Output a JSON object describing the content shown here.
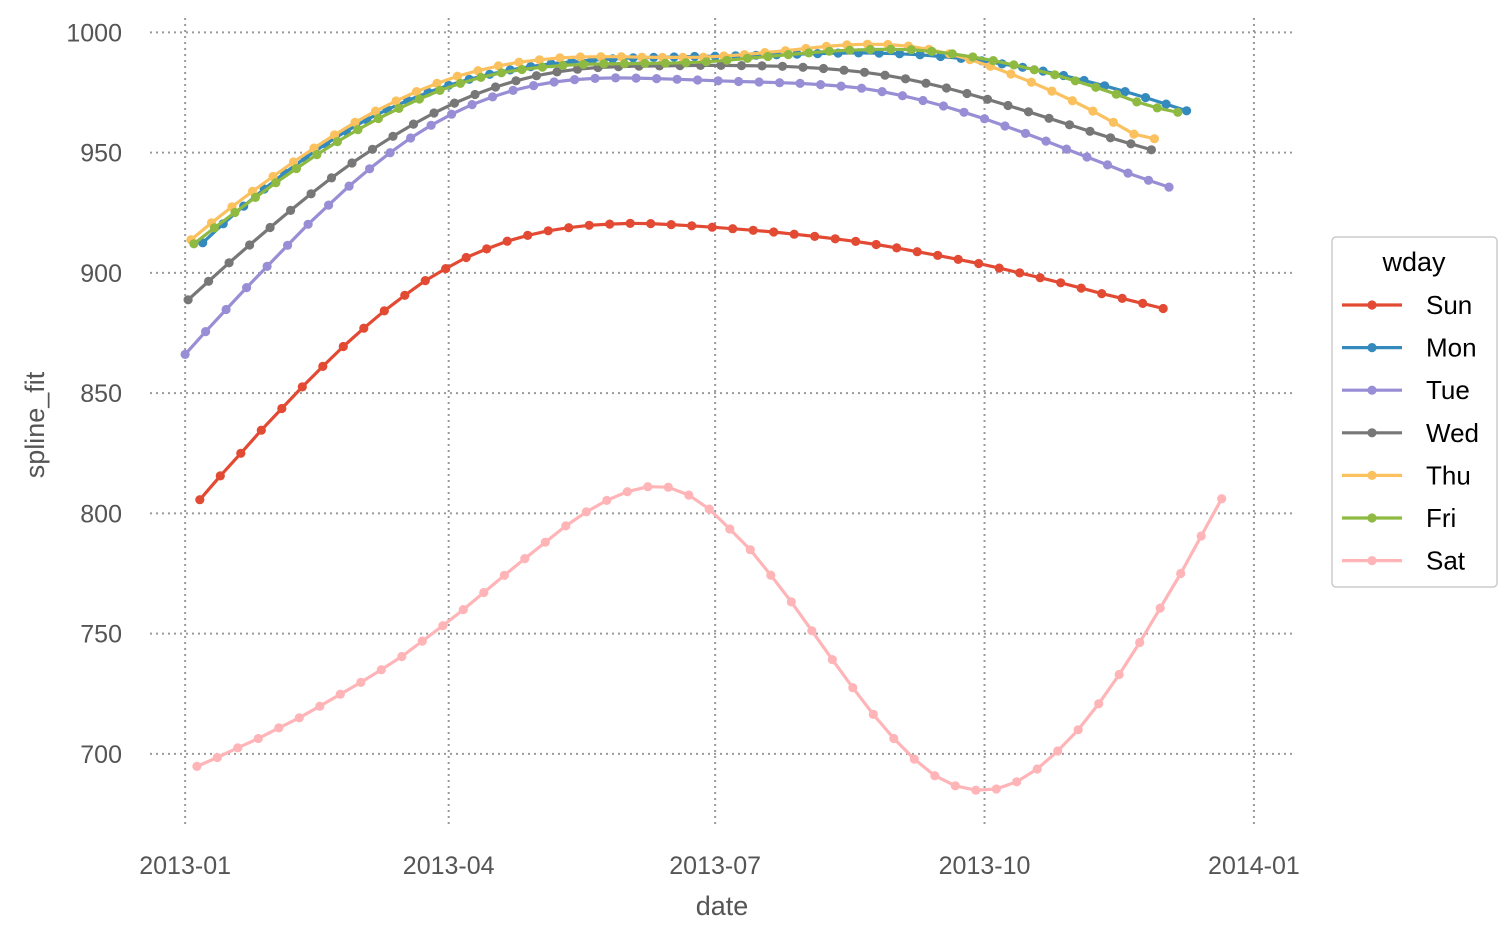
{
  "chart_data": {
    "type": "line",
    "title": "",
    "xlabel": "date",
    "ylabel": "spline_fit",
    "x_ticks": [
      "2013-01",
      "2013-04",
      "2013-07",
      "2013-10",
      "2014-01"
    ],
    "y_ticks": [
      700,
      750,
      800,
      850,
      900,
      950,
      1000
    ],
    "xlim": [
      "2012-12-20",
      "2014-01-14"
    ],
    "ylim": [
      670,
      1006
    ],
    "grid": true,
    "legend": {
      "title": "wday",
      "position": "right"
    },
    "series": [
      {
        "name": "Sun",
        "color": "#E24A33",
        "x_start": "2013-01-06",
        "step_days": 7,
        "values": [
          805.7,
          815.6,
          825.0,
          834.6,
          843.6,
          852.6,
          861.1,
          869.4,
          877.0,
          884.2,
          890.7,
          896.8,
          901.8,
          906.4,
          910.0,
          913.2,
          915.6,
          917.5,
          918.8,
          919.8,
          920.3,
          920.6,
          920.5,
          920.1,
          919.6,
          919.0,
          918.4,
          917.7,
          917.0,
          916.1,
          915.2,
          914.2,
          913.1,
          911.8,
          910.4,
          908.8,
          907.3,
          905.6,
          903.9,
          902.0,
          900.0,
          898.0,
          895.9,
          893.7,
          891.4,
          889.4,
          887.3,
          885.2
        ]
      },
      {
        "name": "Mon",
        "color": "#348ABD",
        "x_start": "2013-01-07",
        "step_days": 7,
        "values": [
          912.5,
          920.4,
          927.8,
          934.9,
          941.6,
          947.8,
          953.6,
          958.9,
          963.7,
          967.9,
          971.7,
          975.1,
          978.0,
          980.5,
          982.6,
          984.4,
          985.8,
          987.0,
          987.8,
          988.5,
          989.0,
          989.4,
          989.6,
          989.8,
          990.0,
          990.1,
          990.3,
          990.5,
          990.7,
          991.0,
          991.2,
          991.4,
          991.5,
          991.4,
          991.1,
          990.7,
          990.0,
          989.2,
          988.2,
          986.9,
          985.5,
          983.9,
          982.1,
          980.0,
          977.8,
          975.4,
          972.9,
          970.2,
          967.4
        ]
      },
      {
        "name": "Tue",
        "color": "#988ED5",
        "x_start": "2013-01-01",
        "step_days": 7,
        "values": [
          866.1,
          875.6,
          884.8,
          893.9,
          902.7,
          911.5,
          920.2,
          928.2,
          936.1,
          943.3,
          950.0,
          956.1,
          961.4,
          966.0,
          970.0,
          973.2,
          975.9,
          977.9,
          979.4,
          980.4,
          980.9,
          981.1,
          981.0,
          980.8,
          980.5,
          980.2,
          979.9,
          979.6,
          979.4,
          979.1,
          978.8,
          978.3,
          977.7,
          976.8,
          975.4,
          973.7,
          971.7,
          969.4,
          966.8,
          964.1,
          961.1,
          958.0,
          954.8,
          951.5,
          948.2,
          944.9,
          941.5,
          938.5,
          935.7
        ]
      },
      {
        "name": "Wed",
        "color": "#777777",
        "x_start": "2013-01-02",
        "step_days": 7,
        "values": [
          888.8,
          896.5,
          904.2,
          911.6,
          918.9,
          926.0,
          932.9,
          939.5,
          945.7,
          951.4,
          956.8,
          961.9,
          966.5,
          970.6,
          974.2,
          977.3,
          979.9,
          982.0,
          983.6,
          984.7,
          985.4,
          985.8,
          986.0,
          986.1,
          986.2,
          986.3,
          986.3,
          986.2,
          986.1,
          985.9,
          985.5,
          985.0,
          984.3,
          983.4,
          982.2,
          980.7,
          978.9,
          976.9,
          974.6,
          972.2,
          969.6,
          967.0,
          964.3,
          961.6,
          958.9,
          956.2,
          953.7,
          951.2
        ]
      },
      {
        "name": "Thu",
        "color": "#FBC15E",
        "x_start": "2013-01-03",
        "step_days": 7,
        "values": [
          913.8,
          920.8,
          927.5,
          933.9,
          940.1,
          946.1,
          951.9,
          957.4,
          962.6,
          967.3,
          971.5,
          975.4,
          978.8,
          981.8,
          984.1,
          986.1,
          987.6,
          988.6,
          989.4,
          989.8,
          989.9,
          989.9,
          989.7,
          989.6,
          989.6,
          989.7,
          990.2,
          990.8,
          991.6,
          992.4,
          993.3,
          994.2,
          994.8,
          995.1,
          995.0,
          994.3,
          993.0,
          991.1,
          988.7,
          985.9,
          982.7,
          979.3,
          975.6,
          971.6,
          967.3,
          962.6,
          957.7,
          955.8
        ]
      },
      {
        "name": "Fri",
        "color": "#8EBA42",
        "x_start": "2013-01-04",
        "step_days": 7,
        "values": [
          912.1,
          918.7,
          925.1,
          931.4,
          937.5,
          943.4,
          949.2,
          954.6,
          959.6,
          964.2,
          968.4,
          972.3,
          975.9,
          978.8,
          981.3,
          983.2,
          984.6,
          985.6,
          986.3,
          986.7,
          986.9,
          987.0,
          987.1,
          987.2,
          987.4,
          987.8,
          988.4,
          989.2,
          990.0,
          990.8,
          991.5,
          992.2,
          992.6,
          992.9,
          993.0,
          992.8,
          992.1,
          991.1,
          989.8,
          988.3,
          986.5,
          984.5,
          982.4,
          979.9,
          977.2,
          974.3,
          971.1,
          968.6,
          966.8
        ]
      },
      {
        "name": "Sat",
        "color": "#FFB5B8",
        "x_start": "2013-01-05",
        "step_days": 7,
        "values": [
          694.8,
          698.5,
          702.5,
          706.4,
          710.8,
          715.0,
          719.8,
          724.8,
          729.7,
          735.0,
          740.5,
          746.9,
          753.3,
          760.0,
          767.1,
          774.2,
          781.2,
          788.0,
          794.8,
          800.6,
          805.4,
          809.0,
          811.1,
          810.9,
          807.6,
          801.8,
          793.5,
          784.9,
          774.3,
          763.2,
          751.2,
          739.2,
          727.5,
          716.4,
          706.4,
          697.8,
          690.9,
          686.7,
          684.9,
          685.4,
          688.4,
          693.7,
          701.2,
          710.0,
          720.8,
          733.0,
          746.3,
          760.6,
          775.0,
          790.6,
          806.1
        ]
      }
    ]
  }
}
